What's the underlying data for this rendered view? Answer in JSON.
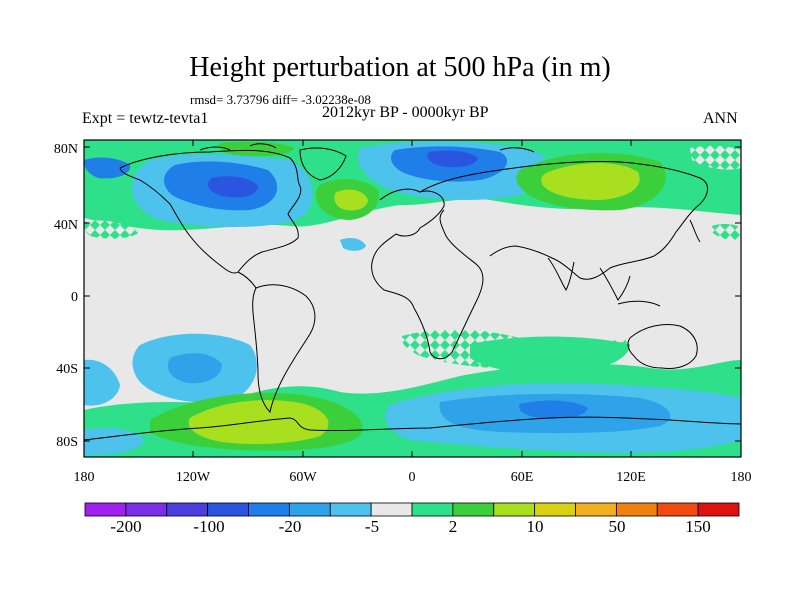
{
  "title": "Height perturbation at 500 hPa (in m)",
  "stats": "rmsd= 3.73796 diff= -3.02238e-08",
  "expt": "Expt = tewtz-tevta1",
  "period": "2012kyr BP - 0000kyr BP",
  "season": "ANN",
  "lat_labels": [
    "80N",
    "40N",
    "0",
    "40S",
    "80S"
  ],
  "lon_labels": [
    "180",
    "120W",
    "60W",
    "0",
    "60E",
    "120E",
    "180"
  ],
  "colorbar": {
    "colors": [
      "#a020f0",
      "#7a2ee8",
      "#4b3de0",
      "#2a55e0",
      "#1f7ee8",
      "#2ea3ea",
      "#4cc2ec",
      "#e8e8e8",
      "#2ee08a",
      "#3ccf3c",
      "#a8e020",
      "#d8d010",
      "#f0b020",
      "#f08010",
      "#f04a10",
      "#e01010"
    ],
    "labels": [
      "-200",
      "-100",
      "-20",
      "-5",
      "2",
      "10",
      "50",
      "150"
    ]
  },
  "colors": {
    "background": "#e8e8e8",
    "light_blue": "#4cc2ec",
    "mid_blue": "#2ea3ea",
    "blue": "#1f7ee8",
    "dark_blue": "#2a55e0",
    "teal_green": "#2ee08a",
    "green": "#3ccf3c",
    "yellow_green": "#a8e020"
  }
}
